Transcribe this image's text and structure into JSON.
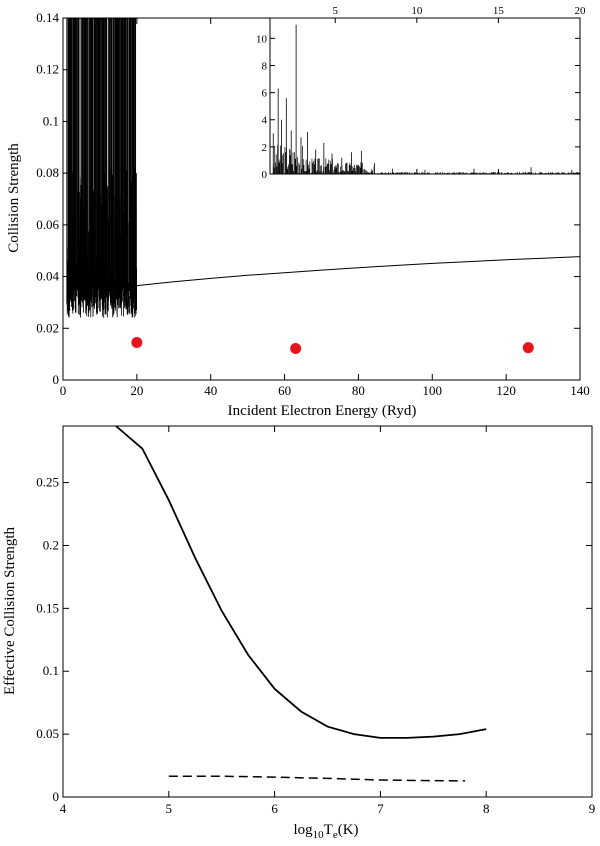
{
  "chart_data": [
    {
      "type": "line",
      "xlabel": "Incident Electron Energy (Ryd)",
      "ylabel": "Collision Strength",
      "xlim": [
        0,
        140
      ],
      "ylim": [
        0,
        0.14
      ],
      "xticks": [
        "0",
        "20",
        "40",
        "60",
        "80",
        "100",
        "120",
        "140"
      ],
      "yticks": [
        "0",
        "0.02",
        "0.04",
        "0.06",
        "0.08",
        "0.1",
        "0.12",
        "0.14"
      ],
      "series": [
        {
          "style": "line",
          "x": [
            20,
            30,
            40,
            50,
            60,
            70,
            80,
            90,
            100,
            110,
            120,
            130,
            140
          ],
          "y": [
            0.0365,
            0.038,
            0.0393,
            0.0405,
            0.0415,
            0.0425,
            0.0434,
            0.0443,
            0.0451,
            0.0458,
            0.0465,
            0.0471,
            0.0477
          ]
        },
        {
          "style": "markers",
          "color": "#e8141b",
          "x": [
            20,
            63,
            126
          ],
          "y": [
            0.0145,
            0.0122,
            0.0125
          ]
        }
      ],
      "resonance_region": {
        "x_from": 1,
        "x_to": 20,
        "y_baseline": 0.036
      },
      "inset": {
        "type": "line",
        "xlim": [
          1,
          20
        ],
        "ylim": [
          0,
          11.5
        ],
        "xticks": [
          "5",
          "10",
          "15",
          "20"
        ],
        "yticks": [
          "0",
          "2",
          "4",
          "6",
          "8",
          "10"
        ],
        "peaks": {
          "x": [
            1.2,
            1.5,
            1.7,
            2.0,
            2.3,
            2.6,
            2.9,
            3.3,
            3.8,
            4.3,
            4.8,
            5.4,
            6.0,
            6.6,
            7.4,
            8.5,
            10.5,
            13.5,
            17.0,
            19.5
          ],
          "y": [
            3.0,
            6.3,
            4.0,
            5.6,
            3.2,
            11.0,
            2.7,
            3.1,
            1.8,
            2.3,
            1.5,
            1.2,
            1.6,
            1.7,
            0.8,
            0.4,
            0.3,
            0.4,
            0.5,
            0.3
          ]
        }
      }
    },
    {
      "type": "line",
      "xlabel": "log10Te(K)",
      "ylabel": "Effective Collision Strength",
      "xlim": [
        4,
        9
      ],
      "ylim": [
        0,
        0.295
      ],
      "xticks": [
        "4",
        "5",
        "6",
        "7",
        "8",
        "9"
      ],
      "yticks": [
        "0",
        "0.05",
        "0.1",
        "0.15",
        "0.2",
        "0.25"
      ],
      "series": [
        {
          "style": "solid",
          "x": [
            4.5,
            4.75,
            5.0,
            5.25,
            5.5,
            5.75,
            6.0,
            6.25,
            6.5,
            6.75,
            7.0,
            7.25,
            7.5,
            7.75,
            8.0
          ],
          "y": [
            0.295,
            0.277,
            0.236,
            0.19,
            0.148,
            0.113,
            0.086,
            0.068,
            0.056,
            0.05,
            0.047,
            0.047,
            0.048,
            0.05,
            0.054
          ]
        },
        {
          "style": "dashed",
          "x": [
            5.0,
            5.5,
            6.0,
            6.5,
            7.0,
            7.5,
            7.8
          ],
          "y": [
            0.0165,
            0.0165,
            0.0158,
            0.0148,
            0.0135,
            0.013,
            0.0128
          ]
        }
      ]
    }
  ]
}
